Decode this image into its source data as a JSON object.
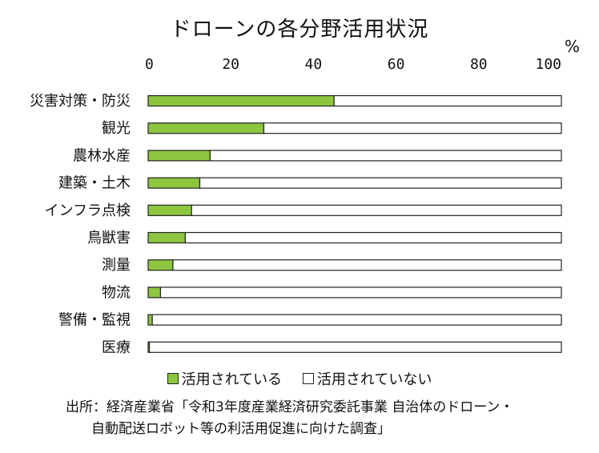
{
  "chart_data": {
    "type": "bar",
    "orientation": "horizontal",
    "stacked": true,
    "title": "ドローンの各分野活用状況",
    "unit_label": "%",
    "xlim": [
      0,
      100
    ],
    "xticks": [
      "0",
      "20",
      "40",
      "60",
      "80",
      "100"
    ],
    "categories": [
      "災害対策・防災",
      "観光",
      "農林水産",
      "建築・土木",
      "インフラ点検",
      "鳥獣害",
      "測量",
      "物流",
      "警備・監視",
      "医療"
    ],
    "series": [
      {
        "name": "活用されている",
        "values": [
          45,
          28,
          15,
          12.5,
          10.5,
          9,
          6,
          3,
          1,
          0.3
        ],
        "color": "#8cc63f"
      },
      {
        "name": "活用されていない",
        "values": [
          55,
          72,
          85,
          87.5,
          89.5,
          91,
          94,
          97,
          99,
          99.7
        ],
        "color": "#ffffff"
      }
    ],
    "legend_position": "bottom"
  },
  "source": {
    "line1": "出所：経済産業省「令和3年度産業経済研究委託事業 自治体のドローン・",
    "line2": "自動配送ロボット等の利活用促進に向けた調査」"
  }
}
